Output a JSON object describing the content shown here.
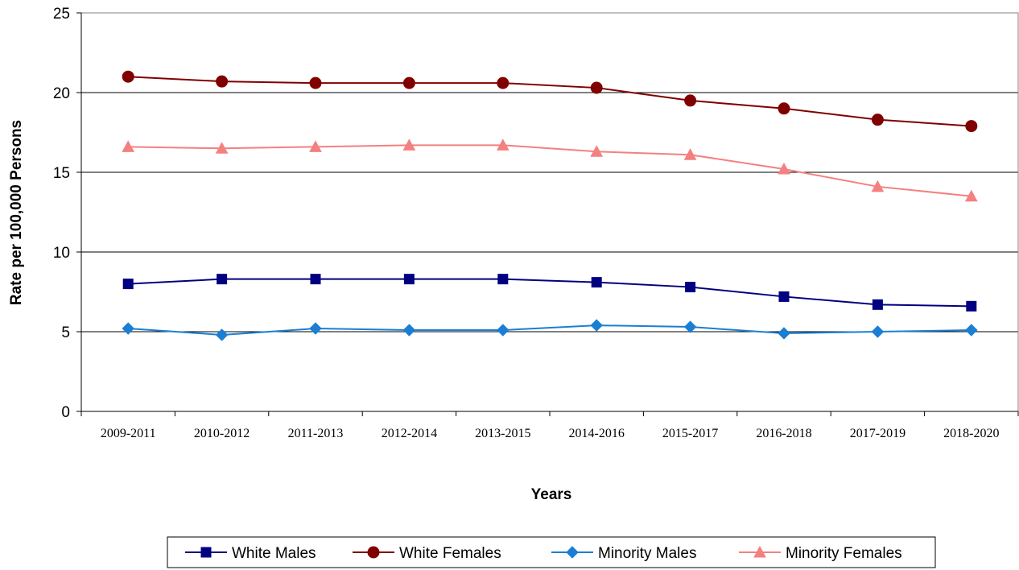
{
  "chart_data": {
    "type": "line",
    "title": "",
    "xlabel": "Years",
    "ylabel": "Rate per 100,000 Persons",
    "ylim": [
      0,
      25
    ],
    "yticks": [
      0,
      5,
      10,
      15,
      20,
      25
    ],
    "grid": true,
    "legend_position": "bottom",
    "categories": [
      "2009-2011",
      "2010-2012",
      "2011-2013",
      "2012-2014",
      "2013-2015",
      "2014-2016",
      "2015-2017",
      "2016-2018",
      "2017-2019",
      "2018-2020"
    ],
    "series": [
      {
        "name": "White Males",
        "color": "#000080",
        "marker": "square",
        "values": [
          8.0,
          8.3,
          8.3,
          8.3,
          8.3,
          8.1,
          7.8,
          7.2,
          6.7,
          6.6
        ]
      },
      {
        "name": "White Females",
        "color": "#800000",
        "marker": "circle",
        "values": [
          21.0,
          20.7,
          20.6,
          20.6,
          20.6,
          20.3,
          19.5,
          19.0,
          18.3,
          17.9
        ]
      },
      {
        "name": "Minority Males",
        "color": "#1a7fd4",
        "marker": "diamond",
        "values": [
          5.2,
          4.8,
          5.2,
          5.1,
          5.1,
          5.4,
          5.3,
          4.9,
          5.0,
          5.1
        ]
      },
      {
        "name": "Minority Females",
        "color": "#f48080",
        "marker": "triangle",
        "values": [
          16.6,
          16.5,
          16.6,
          16.7,
          16.7,
          16.3,
          16.1,
          15.2,
          14.1,
          13.5
        ]
      }
    ]
  }
}
